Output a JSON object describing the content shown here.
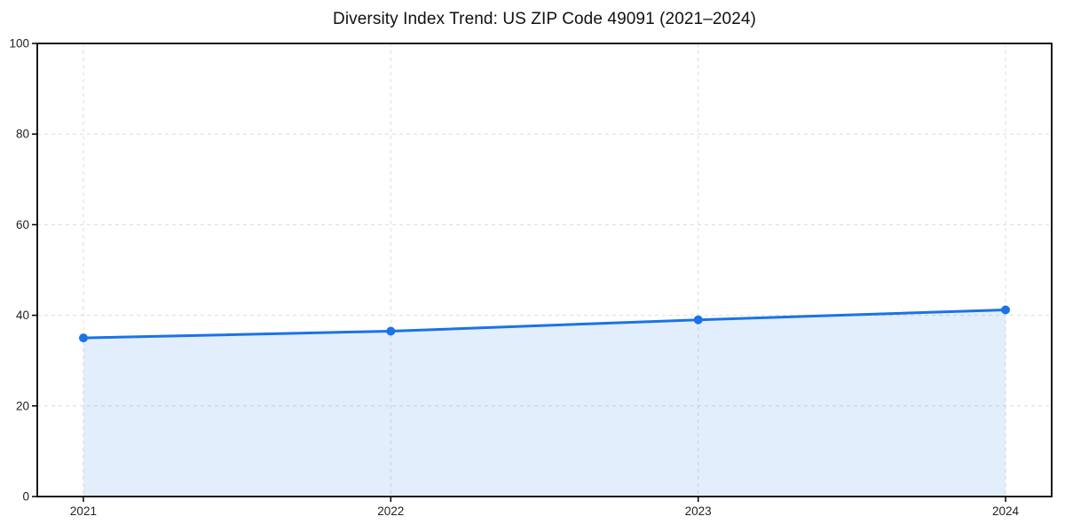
{
  "page": {
    "background": "#ffffff"
  },
  "chart_data": {
    "type": "area",
    "title": "Diversity Index Trend: US ZIP Code 49091 (2021–2024)",
    "x": [
      2021,
      2022,
      2023,
      2024
    ],
    "x_tick_labels": [
      "2021",
      "2022",
      "2023",
      "2024"
    ],
    "values": [
      35.0,
      36.5,
      39.0,
      41.2
    ],
    "xlabel": "",
    "ylabel": "",
    "ylim": [
      0,
      100
    ],
    "y_ticks": [
      0,
      20,
      40,
      60,
      80,
      100
    ],
    "x_margin": 0.05,
    "grid": {
      "show": true,
      "style": "dashed",
      "axes": "both",
      "color": "#dcdcdc"
    },
    "legend": {
      "show": false
    },
    "styles": {
      "line_color": "#1a73e8",
      "fill_color": "rgba(26,115,232,0.12)",
      "marker": "circle",
      "marker_radius": 5,
      "line_width": 3,
      "spine_color": "#000000",
      "tick_color": "#000000",
      "tick_label_color": "#222222",
      "title_color": "#111111"
    }
  }
}
